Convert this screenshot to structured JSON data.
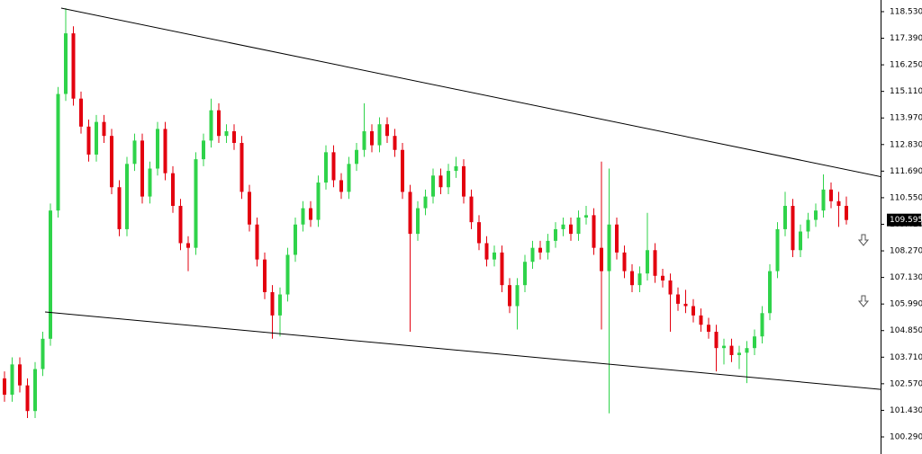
{
  "chart_data": {
    "type": "candlestick",
    "up_color": "#2fd34a",
    "down_color": "#e3000f",
    "ylim": [
      99.557,
      119.03
    ],
    "yticks": [
      {
        "value": 100.29,
        "label": "100.290"
      },
      {
        "value": 101.43,
        "label": "101.430"
      },
      {
        "value": 102.57,
        "label": "102.570"
      },
      {
        "value": 103.71,
        "label": "103.710"
      },
      {
        "value": 104.85,
        "label": "104.850"
      },
      {
        "value": 105.99,
        "label": "105.990"
      },
      {
        "value": 107.13,
        "label": "107.130"
      },
      {
        "value": 108.27,
        "label": "108.270"
      },
      {
        "value": 109.41,
        "label": "109.410"
      },
      {
        "value": 110.55,
        "label": "110.550"
      },
      {
        "value": 111.69,
        "label": "111.690"
      },
      {
        "value": 112.83,
        "label": "112.830"
      },
      {
        "value": 113.97,
        "label": "113.970"
      },
      {
        "value": 115.11,
        "label": "115.110"
      },
      {
        "value": 116.25,
        "label": "116.250"
      },
      {
        "value": 117.39,
        "label": "117.390"
      },
      {
        "value": 118.53,
        "label": "118.530"
      }
    ],
    "last_price": 109.595,
    "trendlines": [
      {
        "x": [
          7.4,
          118.2
        ],
        "y": [
          118.684,
          111.203
        ]
      },
      {
        "x": [
          5.3,
          118.2
        ],
        "y": [
          105.65,
          102.217
        ]
      }
    ],
    "ohlc": [
      [
        102.8,
        103.1,
        101.8,
        102.1
      ],
      [
        102.1,
        103.7,
        101.8,
        103.4
      ],
      [
        103.4,
        103.7,
        102.2,
        102.5
      ],
      [
        102.5,
        102.8,
        101.1,
        101.4
      ],
      [
        101.4,
        103.5,
        101.1,
        103.2
      ],
      [
        103.2,
        104.8,
        102.9,
        104.5
      ],
      [
        104.5,
        110.3,
        104.2,
        110.0
      ],
      [
        110.0,
        115.3,
        109.7,
        115.0
      ],
      [
        115.0,
        118.68,
        114.7,
        117.6
      ],
      [
        117.6,
        117.9,
        114.5,
        114.8
      ],
      [
        114.8,
        115.1,
        113.3,
        113.6
      ],
      [
        113.6,
        113.9,
        112.1,
        112.4
      ],
      [
        112.4,
        114.1,
        112.1,
        113.8
      ],
      [
        113.8,
        114.1,
        112.9,
        113.2
      ],
      [
        113.2,
        113.5,
        110.7,
        111.0
      ],
      [
        111.0,
        111.3,
        108.9,
        109.2
      ],
      [
        109.2,
        112.3,
        108.9,
        112.0
      ],
      [
        112.0,
        113.3,
        111.7,
        113.0
      ],
      [
        113.0,
        113.3,
        110.3,
        110.6
      ],
      [
        110.6,
        112.1,
        110.3,
        111.8
      ],
      [
        111.8,
        113.8,
        111.5,
        113.5
      ],
      [
        113.5,
        113.8,
        111.3,
        111.6
      ],
      [
        111.6,
        111.9,
        109.9,
        110.2
      ],
      [
        110.2,
        110.5,
        108.3,
        108.6
      ],
      [
        108.6,
        108.9,
        107.4,
        108.4
      ],
      [
        108.4,
        112.5,
        108.1,
        112.2
      ],
      [
        112.2,
        113.3,
        111.9,
        113.0
      ],
      [
        113.0,
        114.8,
        112.7,
        114.3
      ],
      [
        114.3,
        114.6,
        112.9,
        113.2
      ],
      [
        113.2,
        113.7,
        112.9,
        113.4
      ],
      [
        113.4,
        113.7,
        112.6,
        112.9
      ],
      [
        112.9,
        113.2,
        110.5,
        110.8
      ],
      [
        110.8,
        111.1,
        109.1,
        109.4
      ],
      [
        109.4,
        109.7,
        107.6,
        107.9
      ],
      [
        107.9,
        108.2,
        106.2,
        106.5
      ],
      [
        106.5,
        106.8,
        104.5,
        105.5
      ],
      [
        105.5,
        106.7,
        104.6,
        106.4
      ],
      [
        106.4,
        108.4,
        106.1,
        108.1
      ],
      [
        108.1,
        109.7,
        107.8,
        109.4
      ],
      [
        109.4,
        110.4,
        109.1,
        110.1
      ],
      [
        110.1,
        110.4,
        109.3,
        109.6
      ],
      [
        109.6,
        111.5,
        109.3,
        111.2
      ],
      [
        111.2,
        112.8,
        110.9,
        112.5
      ],
      [
        112.5,
        112.8,
        111.0,
        111.3
      ],
      [
        111.3,
        111.6,
        110.5,
        110.8
      ],
      [
        110.8,
        112.3,
        110.5,
        112.0
      ],
      [
        112.0,
        112.9,
        111.7,
        112.6
      ],
      [
        112.6,
        114.6,
        112.3,
        113.4
      ],
      [
        113.4,
        113.7,
        112.5,
        112.8
      ],
      [
        112.8,
        114.0,
        112.5,
        113.7
      ],
      [
        113.7,
        114.0,
        112.9,
        113.2
      ],
      [
        113.2,
        113.5,
        112.3,
        112.6
      ],
      [
        112.6,
        112.9,
        110.5,
        110.8
      ],
      [
        110.8,
        111.1,
        104.8,
        109.0
      ],
      [
        109.0,
        110.4,
        108.7,
        110.1
      ],
      [
        110.1,
        110.9,
        109.8,
        110.6
      ],
      [
        110.6,
        111.8,
        110.3,
        111.5
      ],
      [
        111.5,
        111.8,
        110.7,
        111.0
      ],
      [
        111.0,
        112.0,
        110.7,
        111.7
      ],
      [
        111.7,
        112.3,
        111.4,
        111.9
      ],
      [
        111.9,
        112.2,
        110.3,
        110.6
      ],
      [
        110.6,
        110.9,
        109.2,
        109.5
      ],
      [
        109.5,
        109.8,
        108.3,
        108.6
      ],
      [
        108.6,
        108.9,
        107.6,
        107.9
      ],
      [
        107.9,
        108.5,
        107.6,
        108.2
      ],
      [
        108.2,
        108.5,
        106.5,
        106.8
      ],
      [
        106.8,
        107.1,
        105.6,
        105.9
      ],
      [
        105.9,
        107.1,
        104.9,
        106.8
      ],
      [
        106.8,
        108.1,
        106.5,
        107.8
      ],
      [
        107.8,
        108.7,
        107.5,
        108.4
      ],
      [
        108.4,
        108.7,
        107.9,
        108.2
      ],
      [
        108.2,
        109.0,
        107.9,
        108.7
      ],
      [
        108.7,
        109.5,
        108.4,
        109.2
      ],
      [
        109.2,
        109.7,
        108.9,
        109.4
      ],
      [
        109.4,
        109.7,
        108.7,
        109.0
      ],
      [
        109.0,
        110.0,
        108.7,
        109.7
      ],
      [
        109.7,
        110.2,
        109.4,
        109.8
      ],
      [
        109.8,
        110.1,
        108.1,
        108.4
      ],
      [
        108.4,
        112.1,
        104.9,
        107.4
      ],
      [
        107.4,
        111.8,
        101.3,
        109.4
      ],
      [
        109.4,
        109.7,
        107.9,
        108.2
      ],
      [
        108.2,
        108.5,
        107.1,
        107.4
      ],
      [
        107.4,
        107.7,
        106.5,
        106.8
      ],
      [
        106.8,
        107.6,
        106.5,
        107.3
      ],
      [
        107.3,
        109.9,
        107.0,
        108.3
      ],
      [
        108.3,
        108.6,
        106.9,
        107.2
      ],
      [
        107.2,
        107.5,
        106.7,
        107.0
      ],
      [
        107.0,
        107.3,
        104.8,
        106.4
      ],
      [
        106.4,
        106.7,
        105.7,
        106.0
      ],
      [
        106.0,
        106.6,
        105.6,
        105.9
      ],
      [
        105.9,
        106.2,
        105.2,
        105.5
      ],
      [
        105.5,
        105.8,
        104.8,
        105.1
      ],
      [
        105.1,
        105.4,
        104.5,
        104.8
      ],
      [
        104.8,
        105.1,
        103.1,
        104.1
      ],
      [
        104.1,
        104.5,
        103.4,
        104.2
      ],
      [
        104.2,
        104.5,
        103.5,
        103.8
      ],
      [
        103.8,
        104.2,
        103.2,
        103.9
      ],
      [
        103.9,
        104.4,
        102.6,
        104.1
      ],
      [
        104.1,
        104.9,
        103.8,
        104.6
      ],
      [
        104.6,
        105.9,
        104.3,
        105.6
      ],
      [
        105.6,
        107.7,
        105.3,
        107.4
      ],
      [
        107.4,
        109.5,
        107.1,
        109.2
      ],
      [
        109.2,
        110.8,
        108.9,
        110.2
      ],
      [
        110.2,
        110.5,
        108.0,
        108.3
      ],
      [
        108.3,
        109.4,
        108.0,
        109.1
      ],
      [
        109.1,
        109.9,
        108.8,
        109.6
      ],
      [
        109.6,
        110.3,
        109.3,
        110.0
      ],
      [
        110.0,
        111.55,
        109.7,
        110.9
      ],
      [
        110.9,
        111.2,
        110.1,
        110.4
      ],
      [
        110.4,
        110.8,
        109.3,
        110.2
      ],
      [
        110.2,
        110.6,
        109.4,
        109.595
      ]
    ]
  }
}
